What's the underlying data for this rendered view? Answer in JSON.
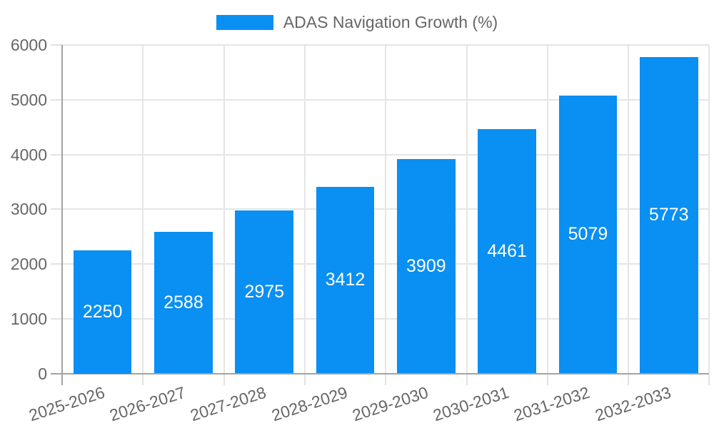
{
  "chart_data": {
    "type": "bar",
    "legend_label": "ADAS Navigation Growth (%)",
    "legend_position": "top-center",
    "categories": [
      "2025-2026",
      "2026-2027",
      "2027-2028",
      "2028-2029",
      "2029-2030",
      "2030-2031",
      "2031-2032",
      "2032-2033"
    ],
    "values": [
      2250,
      2588,
      2975,
      3412,
      3909,
      4461,
      5079,
      5773
    ],
    "value_labels_position": "inside-center",
    "xlabel": "",
    "ylabel": "",
    "ylim": [
      0,
      6000
    ],
    "yticks": [
      0,
      1000,
      2000,
      3000,
      4000,
      5000,
      6000
    ],
    "grid": true,
    "x_label_rotation_deg": -18,
    "colors": {
      "bar": "#0a8ff2",
      "bar_value_label": "#ffffff",
      "axis_text": "#666666",
      "grid_line": "#e5e5e5",
      "tick_line": "#e2e2e2",
      "axis_line": "#a3a3a3",
      "background": "#ffffff"
    }
  }
}
